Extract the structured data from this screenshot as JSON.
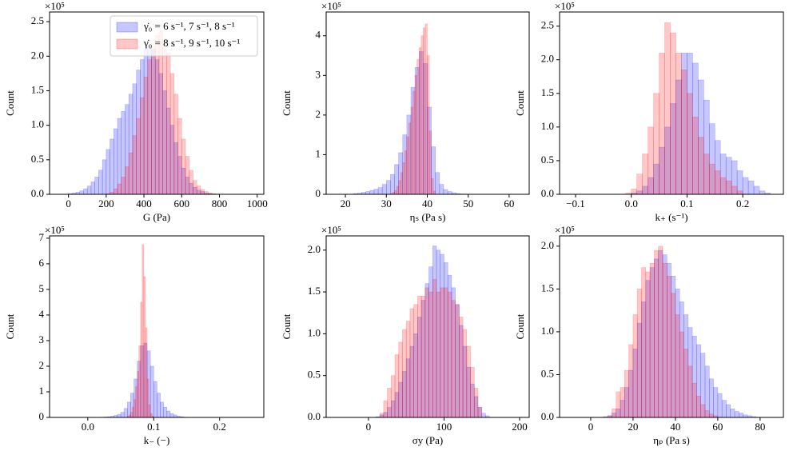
{
  "chart_data": [
    {
      "type": "histogram",
      "xlabel": "G (Pa)",
      "ylabel": "Count",
      "y_multiplier": "×10⁵",
      "xlim": [
        -100,
        1035
      ],
      "xticks": [
        0,
        200,
        400,
        600,
        800,
        1000
      ],
      "ylim": [
        0,
        2.64
      ],
      "yticks": [
        {
          "value": 0,
          "label": "0.0"
        },
        0.5,
        {
          "value": 1,
          "label": "1.0"
        },
        1.5,
        {
          "value": 2,
          "label": "2.0"
        },
        2.5
      ],
      "legend": "upper right",
      "series": [
        {
          "name": "γ̇₀ = 6 s⁻¹, 7 s⁻¹, 8 s⁻¹",
          "color": "#0000ff",
          "bins": [
            0,
            20,
            40,
            60,
            80,
            100,
            120,
            140,
            160,
            180,
            200,
            220,
            240,
            260,
            280,
            300,
            320,
            340,
            360,
            380,
            400,
            420,
            440,
            460,
            480,
            500,
            520,
            540,
            560,
            580,
            600,
            620,
            640,
            660,
            680,
            700,
            720,
            740,
            760,
            780,
            800
          ],
          "values": [
            0.01,
            0.02,
            0.03,
            0.05,
            0.08,
            0.12,
            0.18,
            0.25,
            0.35,
            0.5,
            0.65,
            0.8,
            0.95,
            1.1,
            1.2,
            1.3,
            1.45,
            1.6,
            1.8,
            1.95,
            2.1,
            2.15,
            2.1,
            1.95,
            1.75,
            1.5,
            1.25,
            1.0,
            0.75,
            0.55,
            0.38,
            0.25,
            0.16,
            0.1,
            0.06,
            0.04,
            0.02,
            0.01,
            0.005,
            0.002
          ]
        },
        {
          "name": "γ̇₀ = 8 s⁻¹, 9 s⁻¹, 10 s⁻¹",
          "color": "#ff0000",
          "bins": [
            200,
            220,
            240,
            260,
            280,
            300,
            320,
            340,
            360,
            380,
            400,
            420,
            440,
            460,
            480,
            500,
            520,
            540,
            560,
            580,
            600,
            620,
            640,
            660,
            680,
            700,
            720,
            740,
            760,
            780,
            800
          ],
          "values": [
            0.01,
            0.03,
            0.08,
            0.15,
            0.25,
            0.4,
            0.6,
            0.85,
            1.1,
            1.4,
            1.7,
            1.95,
            2.15,
            2.3,
            2.35,
            2.25,
            2.05,
            1.75,
            1.45,
            1.1,
            0.8,
            0.55,
            0.35,
            0.2,
            0.12,
            0.07,
            0.04,
            0.02,
            0.01,
            0.005
          ]
        }
      ]
    },
    {
      "type": "histogram",
      "xlabel": "ηₛ (Pa s)",
      "ylabel": "Count",
      "y_multiplier": "×10⁵",
      "xlim": [
        15.3,
        64.9
      ],
      "xticks": [
        20,
        30,
        40,
        50,
        60
      ],
      "ylim": [
        0,
        4.6
      ],
      "yticks": [
        0,
        1,
        2,
        3,
        4
      ],
      "series": [
        {
          "color": "#0000ff",
          "bins": [
            22,
            23,
            24,
            25,
            26,
            27,
            28,
            29,
            30,
            31,
            32,
            33,
            34,
            35,
            36,
            37,
            38,
            39,
            40,
            41,
            42,
            43,
            44,
            45,
            46,
            47,
            48,
            49,
            50
          ],
          "values": [
            0.02,
            0.03,
            0.05,
            0.07,
            0.1,
            0.13,
            0.17,
            0.25,
            0.35,
            0.5,
            0.75,
            1.05,
            1.5,
            2.0,
            2.7,
            3.2,
            3.6,
            3.3,
            2.2,
            1.2,
            0.55,
            0.25,
            0.12,
            0.07,
            0.04,
            0.02,
            0.01,
            0.005
          ]
        },
        {
          "color": "#ff0000",
          "bins": [
            31,
            31.5,
            32,
            32.5,
            33,
            33.5,
            34,
            34.5,
            35,
            35.5,
            36,
            36.5,
            37,
            37.5,
            38,
            38.5,
            39,
            39.5,
            40,
            40.5,
            41,
            41.5,
            42
          ],
          "values": [
            0.02,
            0.05,
            0.1,
            0.2,
            0.35,
            0.55,
            0.8,
            1.1,
            1.45,
            1.8,
            2.2,
            2.6,
            3.0,
            3.4,
            3.7,
            4.0,
            4.2,
            4.3,
            3.5,
            1.6,
            0.4,
            0.08
          ]
        }
      ]
    },
    {
      "type": "histogram",
      "xlabel": "k₊ (s⁻¹)",
      "ylabel": "Count",
      "y_multiplier": "×10⁵",
      "xlim": [
        -0.1287,
        0.273
      ],
      "xticks": [
        {
          "value": -0.1,
          "label": "−0.1"
        },
        {
          "value": 0,
          "label": "0.0"
        },
        0.1,
        0.2
      ],
      "ylim": [
        0,
        2.71
      ],
      "yticks": [
        {
          "value": 0,
          "label": "0.0"
        },
        0.5,
        {
          "value": 1,
          "label": "1.0"
        },
        1.5,
        {
          "value": 2,
          "label": "2.0"
        },
        2.5
      ],
      "series": [
        {
          "color": "#0000ff",
          "bins": [
            0,
            0.01,
            0.02,
            0.03,
            0.04,
            0.05,
            0.06,
            0.07,
            0.08,
            0.09,
            0.1,
            0.11,
            0.12,
            0.13,
            0.14,
            0.15,
            0.16,
            0.17,
            0.18,
            0.19,
            0.2,
            0.21,
            0.22,
            0.23,
            0.24,
            0.25
          ],
          "values": [
            0.02,
            0.05,
            0.12,
            0.25,
            0.45,
            0.7,
            1.0,
            1.35,
            1.7,
            2.1,
            2.1,
            1.95,
            1.7,
            1.4,
            1.05,
            0.8,
            0.6,
            0.55,
            0.5,
            0.35,
            0.25,
            0.2,
            0.12,
            0.05,
            0.02
          ]
        },
        {
          "color": "#ff0000",
          "bins": [
            -0.01,
            0,
            0.01,
            0.02,
            0.03,
            0.04,
            0.05,
            0.06,
            0.07,
            0.08,
            0.09,
            0.1,
            0.11,
            0.12,
            0.13,
            0.14,
            0.15,
            0.16,
            0.17,
            0.18,
            0.19,
            0.2
          ],
          "values": [
            0.02,
            0.08,
            0.3,
            0.6,
            1.0,
            1.5,
            2.1,
            2.55,
            2.4,
            2.1,
            1.85,
            1.5,
            1.15,
            0.85,
            0.6,
            0.45,
            0.35,
            0.25,
            0.2,
            0.12,
            0.05
          ]
        }
      ]
    },
    {
      "type": "histogram",
      "xlabel": "k₋ (−)",
      "ylabel": "Count",
      "y_multiplier": "×10⁵",
      "xlim": [
        -0.058,
        0.267
      ],
      "xticks": [
        {
          "value": 0,
          "label": "0.0"
        },
        0.1,
        0.2
      ],
      "ylim": [
        0,
        7.09
      ],
      "yticks": [
        0,
        1,
        2,
        3,
        4,
        5,
        6,
        7
      ],
      "series": [
        {
          "color": "#0000ff",
          "bins": [
            0.02,
            0.025,
            0.03,
            0.035,
            0.04,
            0.045,
            0.05,
            0.055,
            0.06,
            0.065,
            0.07,
            0.075,
            0.08,
            0.085,
            0.09,
            0.095,
            0.1,
            0.105,
            0.11,
            0.115,
            0.12,
            0.125,
            0.13,
            0.135,
            0.14,
            0.145,
            0.15
          ],
          "values": [
            0.01,
            0.02,
            0.03,
            0.05,
            0.08,
            0.12,
            0.2,
            0.35,
            0.6,
            0.95,
            1.5,
            2.2,
            2.8,
            2.9,
            2.6,
            2.0,
            1.4,
            0.95,
            0.6,
            0.4,
            0.25,
            0.15,
            0.1,
            0.05,
            0.03,
            0.01
          ]
        },
        {
          "color": "#ff0000",
          "bins": [
            0.06,
            0.0625,
            0.065,
            0.0675,
            0.07,
            0.0725,
            0.075,
            0.0775,
            0.08,
            0.0825,
            0.085,
            0.0875,
            0.09,
            0.0925,
            0.095,
            0.0975,
            0.1
          ],
          "values": [
            0.05,
            0.1,
            0.2,
            0.4,
            0.7,
            1.2,
            1.8,
            2.8,
            4.5,
            6.75,
            5.5,
            3.5,
            1.5,
            0.5,
            0.15,
            0.05
          ]
        }
      ]
    },
    {
      "type": "histogram",
      "xlabel": "σy (Pa)",
      "ylabel": "Count",
      "y_multiplier": "×10⁵",
      "xlim": [
        -56,
        212.7
      ],
      "xticks": [
        0,
        100,
        200
      ],
      "ylim": [
        0,
        2.17
      ],
      "yticks": [
        {
          "value": 0,
          "label": "0.0"
        },
        0.5,
        {
          "value": 1,
          "label": "1.0"
        },
        1.5,
        {
          "value": 2,
          "label": "2.0"
        }
      ],
      "series": [
        {
          "color": "#0000ff",
          "bins": [
            10,
            15,
            20,
            25,
            30,
            35,
            40,
            45,
            50,
            55,
            60,
            65,
            70,
            75,
            80,
            85,
            90,
            95,
            100,
            105,
            110,
            115,
            120,
            125,
            130,
            135,
            140,
            145,
            150,
            155,
            160
          ],
          "values": [
            0.01,
            0.03,
            0.06,
            0.12,
            0.2,
            0.3,
            0.42,
            0.55,
            0.7,
            0.85,
            1.0,
            1.2,
            1.4,
            1.6,
            1.8,
            2.05,
            2.0,
            1.95,
            1.85,
            1.7,
            1.55,
            1.35,
            1.1,
            0.85,
            0.6,
            0.4,
            0.25,
            0.12,
            0.05,
            0.02
          ]
        },
        {
          "color": "#ff0000",
          "bins": [
            15,
            20,
            25,
            30,
            35,
            40,
            45,
            50,
            55,
            60,
            65,
            70,
            75,
            80,
            85,
            90,
            95,
            100,
            105,
            110,
            115,
            120,
            125,
            130,
            135,
            140,
            145,
            150
          ],
          "values": [
            0.05,
            0.2,
            0.35,
            0.5,
            0.75,
            0.9,
            1.05,
            1.15,
            1.3,
            1.35,
            1.45,
            1.45,
            1.55,
            1.5,
            1.65,
            1.5,
            1.55,
            1.55,
            1.5,
            1.4,
            1.35,
            1.2,
            1.05,
            0.85,
            0.6,
            0.35,
            0.12
          ]
        }
      ]
    },
    {
      "type": "histogram",
      "xlabel": "ηₚ (Pa s)",
      "ylabel": "Count",
      "y_multiplier": "×10⁵",
      "xlim": [
        -14.7,
        91
      ],
      "xticks": [
        0,
        20,
        40,
        60,
        80
      ],
      "ylim": [
        0,
        2.12
      ],
      "yticks": [
        {
          "value": 0,
          "label": "0.0"
        },
        0.5,
        {
          "value": 1,
          "label": "1.0"
        },
        1.5,
        {
          "value": 2,
          "label": "2.0"
        }
      ],
      "series": [
        {
          "color": "#0000ff",
          "bins": [
            6,
            8,
            10,
            12,
            14,
            16,
            18,
            20,
            22,
            24,
            26,
            28,
            30,
            32,
            34,
            36,
            38,
            40,
            42,
            44,
            46,
            48,
            50,
            52,
            54,
            56,
            58,
            60,
            62,
            64,
            66,
            68,
            70,
            72,
            74,
            76,
            78
          ],
          "values": [
            0.01,
            0.02,
            0.05,
            0.1,
            0.2,
            0.35,
            0.55,
            0.8,
            1.1,
            1.35,
            1.6,
            1.75,
            1.85,
            1.95,
            1.9,
            1.8,
            1.65,
            1.5,
            1.35,
            1.2,
            1.05,
            0.95,
            0.85,
            0.75,
            0.6,
            0.45,
            0.35,
            0.28,
            0.2,
            0.15,
            0.1,
            0.07,
            0.05,
            0.03,
            0.02,
            0.01
          ]
        },
        {
          "color": "#ff0000",
          "bins": [
            8,
            10,
            12,
            14,
            16,
            18,
            20,
            22,
            24,
            26,
            28,
            30,
            32,
            34,
            36,
            38,
            40,
            42,
            44,
            46,
            48,
            50,
            52,
            54,
            56,
            58,
            60
          ],
          "values": [
            0.02,
            0.1,
            0.3,
            0.35,
            0.55,
            0.85,
            1.2,
            1.5,
            1.75,
            1.7,
            1.8,
            1.95,
            2.0,
            1.8,
            1.65,
            1.45,
            1.2,
            1.0,
            0.8,
            0.6,
            0.4,
            0.25,
            0.15,
            0.08,
            0.04,
            0.02
          ]
        }
      ]
    }
  ]
}
